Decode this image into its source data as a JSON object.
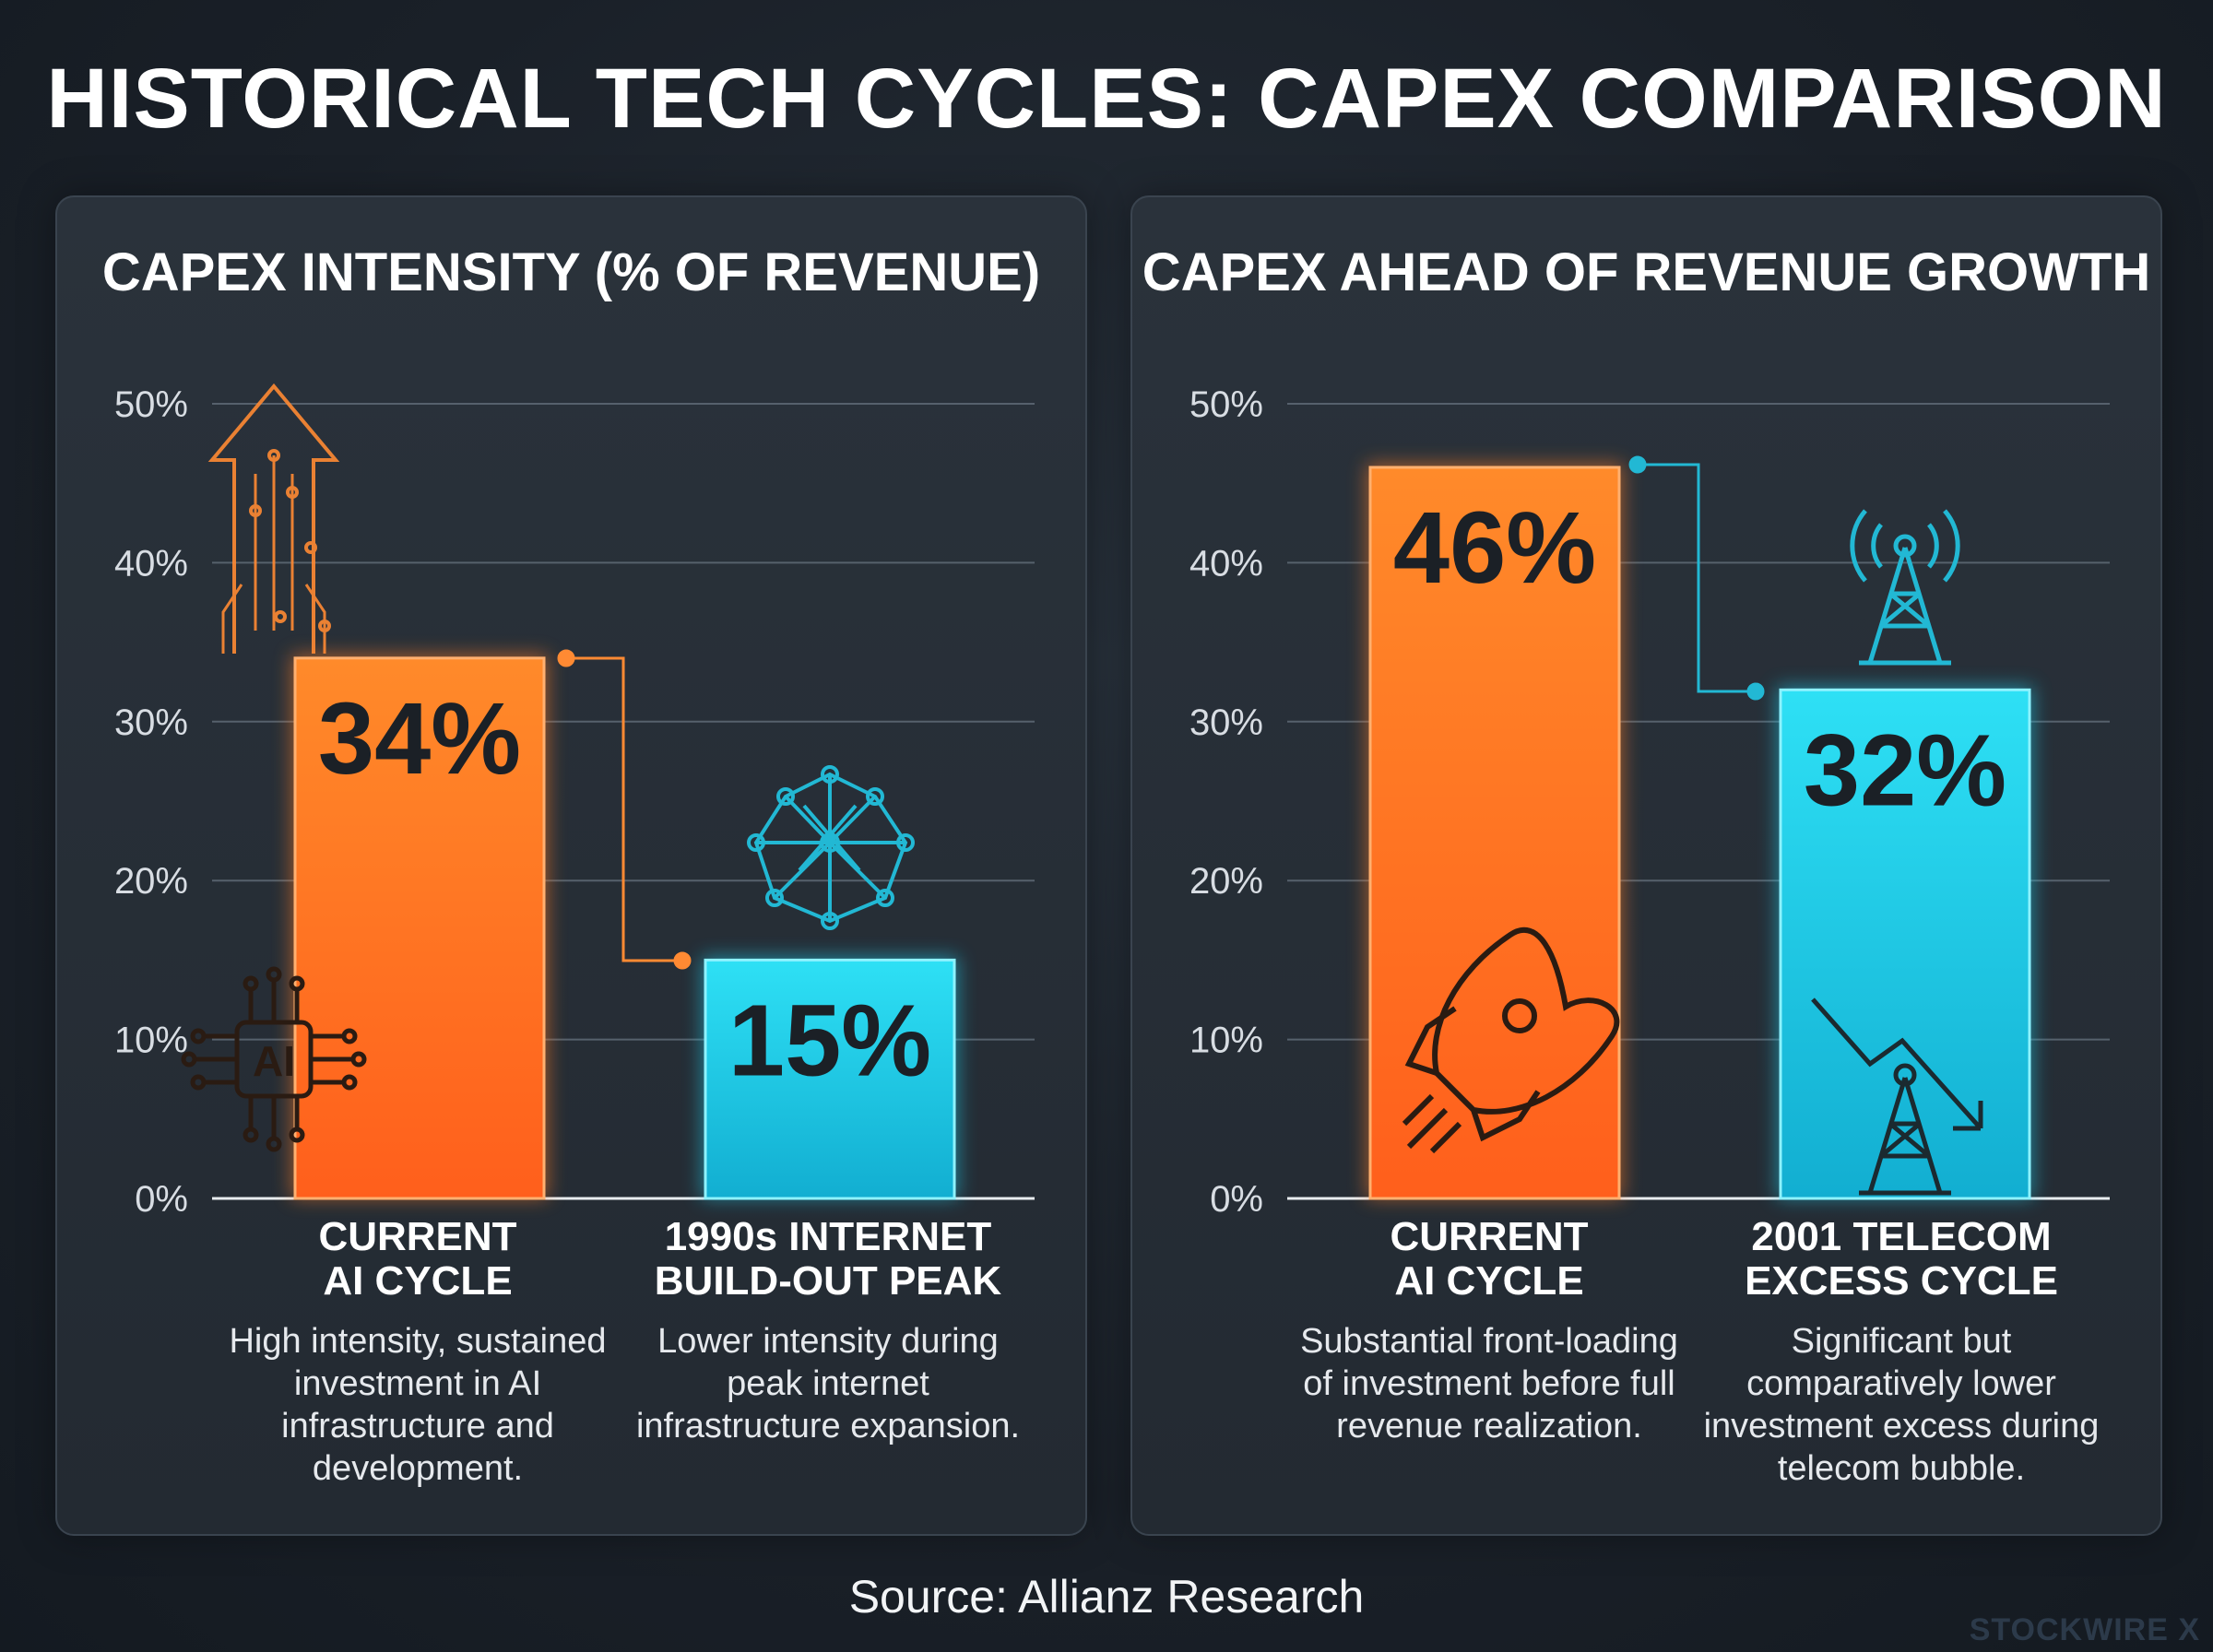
{
  "title": "HISTORICAL TECH CYCLES: CAPEX COMPARISON",
  "source": "Source: Allianz Research",
  "watermark": "STOCKWIRE X",
  "colors": {
    "orange": "#ff7a22",
    "cyan": "#1ec8e6",
    "background": "#1a2028",
    "panel": "#262d35"
  },
  "chart_data": [
    {
      "type": "bar",
      "title": "CAPEX INTENSITY (% OF REVENUE)",
      "ylim": [
        0,
        50
      ],
      "yticks": [
        "0%",
        "10%",
        "20%",
        "30%",
        "40%",
        "50%"
      ],
      "grid": true,
      "categories": [
        "CURRENT\nAI CYCLE",
        "1990s INTERNET\nBUILD-OUT PEAK"
      ],
      "values": [
        34,
        15
      ],
      "value_labels": [
        "34%",
        "15%"
      ],
      "bar_colors": [
        "orange",
        "cyan"
      ],
      "icons": [
        "ai-chip-icon",
        "network-sphere-icon"
      ],
      "descriptions": [
        "High intensity, sustained investment in AI infrastructure and development.",
        "Lower intensity during peak internet infrastructure expansion."
      ]
    },
    {
      "type": "bar",
      "title": "CAPEX AHEAD OF REVENUE GROWTH",
      "ylim": [
        0,
        50
      ],
      "yticks": [
        "0%",
        "10%",
        "20%",
        "30%",
        "40%",
        "50%"
      ],
      "grid": true,
      "categories": [
        "CURRENT\nAI CYCLE",
        "2001 TELECOM\nEXCESS CYCLE"
      ],
      "values": [
        46,
        32
      ],
      "value_labels": [
        "46%",
        "32%"
      ],
      "bar_colors": [
        "orange",
        "cyan"
      ],
      "icons": [
        "rocket-icon",
        "falling-tower-icon"
      ],
      "descriptions": [
        "Substantial front-loading of investment before full revenue realization.",
        "Significant but comparatively lower investment excess during telecom bubble."
      ]
    }
  ]
}
